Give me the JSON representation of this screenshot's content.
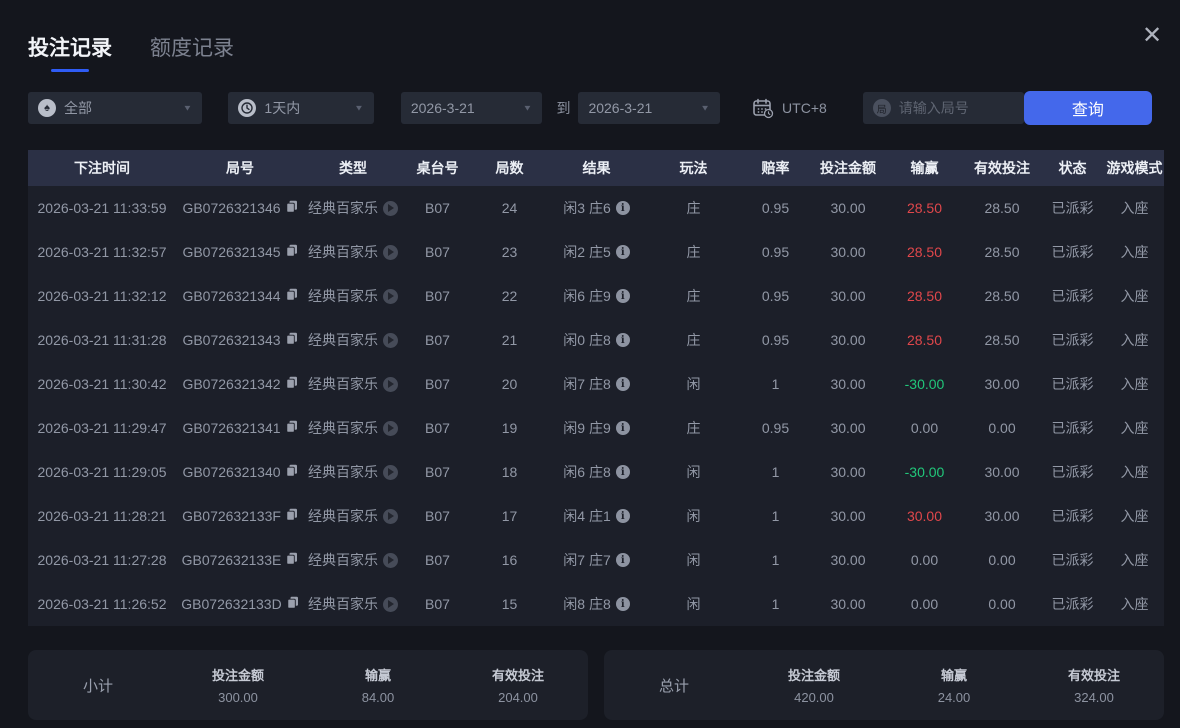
{
  "tabs": [
    {
      "label": "投注记录",
      "active": true
    },
    {
      "label": "额度记录",
      "active": false
    }
  ],
  "filters": {
    "game_type": "全部",
    "game_type_icon": "spade",
    "time_range": "1天内",
    "time_range_icon": "clock",
    "date_from": "2026-3-21",
    "to_label": "到",
    "date_to": "2026-3-21",
    "timezone": "UTC+8",
    "round_placeholder": "请输入局号",
    "round_icon_glyph": "局",
    "search_label": "查询"
  },
  "table": {
    "headers": [
      "下注时间",
      "局号",
      "类型",
      "桌台号",
      "局数",
      "结果",
      "玩法",
      "赔率",
      "投注金额",
      "输赢",
      "有效投注",
      "状态",
      "游戏模式"
    ],
    "rows": [
      {
        "time": "2026-03-21 11:33:59",
        "round": "GB0726321346",
        "type": "经典百家乐",
        "table_no": "B07",
        "games": "24",
        "result": "闲3 庄6",
        "play": "庄",
        "odds": "0.95",
        "amount": "30.00",
        "winloss": "28.50",
        "winloss_color": "red",
        "valid": "28.50",
        "status": "已派彩",
        "mode": "入座"
      },
      {
        "time": "2026-03-21 11:32:57",
        "round": "GB0726321345",
        "type": "经典百家乐",
        "table_no": "B07",
        "games": "23",
        "result": "闲2 庄5",
        "play": "庄",
        "odds": "0.95",
        "amount": "30.00",
        "winloss": "28.50",
        "winloss_color": "red",
        "valid": "28.50",
        "status": "已派彩",
        "mode": "入座"
      },
      {
        "time": "2026-03-21 11:32:12",
        "round": "GB0726321344",
        "type": "经典百家乐",
        "table_no": "B07",
        "games": "22",
        "result": "闲6 庄9",
        "play": "庄",
        "odds": "0.95",
        "amount": "30.00",
        "winloss": "28.50",
        "winloss_color": "red",
        "valid": "28.50",
        "status": "已派彩",
        "mode": "入座"
      },
      {
        "time": "2026-03-21 11:31:28",
        "round": "GB0726321343",
        "type": "经典百家乐",
        "table_no": "B07",
        "games": "21",
        "result": "闲0 庄8",
        "play": "庄",
        "odds": "0.95",
        "amount": "30.00",
        "winloss": "28.50",
        "winloss_color": "red",
        "valid": "28.50",
        "status": "已派彩",
        "mode": "入座"
      },
      {
        "time": "2026-03-21 11:30:42",
        "round": "GB0726321342",
        "type": "经典百家乐",
        "table_no": "B07",
        "games": "20",
        "result": "闲7 庄8",
        "play": "闲",
        "odds": "1",
        "amount": "30.00",
        "winloss": "-30.00",
        "winloss_color": "green",
        "valid": "30.00",
        "status": "已派彩",
        "mode": "入座"
      },
      {
        "time": "2026-03-21 11:29:47",
        "round": "GB0726321341",
        "type": "经典百家乐",
        "table_no": "B07",
        "games": "19",
        "result": "闲9 庄9",
        "play": "庄",
        "odds": "0.95",
        "amount": "30.00",
        "winloss": "0.00",
        "winloss_color": "none",
        "valid": "0.00",
        "status": "已派彩",
        "mode": "入座"
      },
      {
        "time": "2026-03-21 11:29:05",
        "round": "GB0726321340",
        "type": "经典百家乐",
        "table_no": "B07",
        "games": "18",
        "result": "闲6 庄8",
        "play": "闲",
        "odds": "1",
        "amount": "30.00",
        "winloss": "-30.00",
        "winloss_color": "green",
        "valid": "30.00",
        "status": "已派彩",
        "mode": "入座"
      },
      {
        "time": "2026-03-21 11:28:21",
        "round": "GB072632133F",
        "type": "经典百家乐",
        "table_no": "B07",
        "games": "17",
        "result": "闲4 庄1",
        "play": "闲",
        "odds": "1",
        "amount": "30.00",
        "winloss": "30.00",
        "winloss_color": "red",
        "valid": "30.00",
        "status": "已派彩",
        "mode": "入座"
      },
      {
        "time": "2026-03-21 11:27:28",
        "round": "GB072632133E",
        "type": "经典百家乐",
        "table_no": "B07",
        "games": "16",
        "result": "闲7 庄7",
        "play": "闲",
        "odds": "1",
        "amount": "30.00",
        "winloss": "0.00",
        "winloss_color": "none",
        "valid": "0.00",
        "status": "已派彩",
        "mode": "入座"
      },
      {
        "time": "2026-03-21 11:26:52",
        "round": "GB072632133D",
        "type": "经典百家乐",
        "table_no": "B07",
        "games": "15",
        "result": "闲8 庄8",
        "play": "闲",
        "odds": "1",
        "amount": "30.00",
        "winloss": "0.00",
        "winloss_color": "none",
        "valid": "0.00",
        "status": "已派彩",
        "mode": "入座"
      }
    ]
  },
  "subtotal": {
    "label": "小计",
    "amount_label": "投注金额",
    "amount": "300.00",
    "winloss_label": "输赢",
    "winloss": "84.00",
    "winloss_color": "red",
    "valid_label": "有效投注",
    "valid": "204.00"
  },
  "total": {
    "label": "总计",
    "amount_label": "投注金额",
    "amount": "420.00",
    "winloss_label": "输赢",
    "winloss": "24.00",
    "winloss_color": "red",
    "valid_label": "有效投注",
    "valid": "324.00"
  },
  "colors": {
    "accent": "#4468eb",
    "red": "#e0474b",
    "green": "#21c77a",
    "tab_underline": "#2f5cf5"
  }
}
